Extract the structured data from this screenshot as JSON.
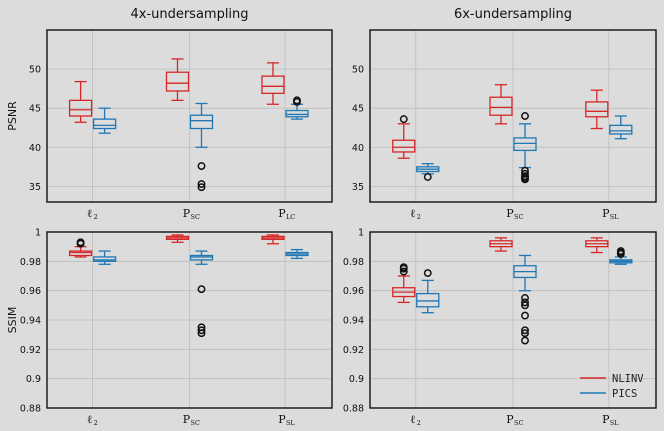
{
  "columns": [
    "4x-undersampling",
    "6x-undersampling"
  ],
  "legend": [
    {
      "name": "NLINV",
      "color": "#d62728"
    },
    {
      "name": "PICS",
      "color": "#1f77b4"
    }
  ],
  "chart_data": [
    {
      "type": "boxplot",
      "title": "4x-undersampling",
      "ylabel": "PSNR",
      "ylim": [
        33,
        55
      ],
      "yticks": [
        35,
        40,
        45,
        50
      ],
      "categories": [
        {
          "main": "ℓ",
          "sub": "2"
        },
        {
          "main": "P",
          "sub": "SC"
        },
        {
          "main": "P",
          "sub": "LC"
        }
      ],
      "series": [
        {
          "name": "NLINV",
          "boxes": [
            {
              "wlo": 43.2,
              "q1": 44.0,
              "med": 44.8,
              "q3": 46.0,
              "whi": 48.4,
              "outliers": []
            },
            {
              "wlo": 46.0,
              "q1": 47.2,
              "med": 48.2,
              "q3": 49.6,
              "whi": 51.3,
              "outliers": []
            },
            {
              "wlo": 45.5,
              "q1": 46.9,
              "med": 47.8,
              "q3": 49.1,
              "whi": 50.8,
              "outliers": []
            }
          ]
        },
        {
          "name": "PICS",
          "boxes": [
            {
              "wlo": 41.8,
              "q1": 42.4,
              "med": 42.8,
              "q3": 43.6,
              "whi": 45.0,
              "outliers": []
            },
            {
              "wlo": 40.0,
              "q1": 42.4,
              "med": 43.4,
              "q3": 44.1,
              "whi": 45.6,
              "outliers": [
                37.6,
                35.3,
                34.9
              ]
            },
            {
              "wlo": 43.6,
              "q1": 43.9,
              "med": 44.2,
              "q3": 44.7,
              "whi": 45.5,
              "outliers": [
                45.8,
                46.0
              ]
            }
          ]
        }
      ]
    },
    {
      "type": "boxplot",
      "title": "6x-undersampling",
      "ylabel": "",
      "ylim": [
        33,
        55
      ],
      "yticks": [
        35,
        40,
        45,
        50
      ],
      "categories": [
        {
          "main": "ℓ",
          "sub": "2"
        },
        {
          "main": "P",
          "sub": "SC"
        },
        {
          "main": "P",
          "sub": "SL"
        }
      ],
      "series": [
        {
          "name": "NLINV",
          "boxes": [
            {
              "wlo": 38.6,
              "q1": 39.4,
              "med": 40.0,
              "q3": 40.9,
              "whi": 43.0,
              "outliers": [
                43.6
              ]
            },
            {
              "wlo": 43.0,
              "q1": 44.1,
              "med": 45.1,
              "q3": 46.4,
              "whi": 48.0,
              "outliers": []
            },
            {
              "wlo": 42.4,
              "q1": 43.9,
              "med": 44.6,
              "q3": 45.8,
              "whi": 47.3,
              "outliers": []
            }
          ]
        },
        {
          "name": "PICS",
          "boxes": [
            {
              "wlo": 36.6,
              "q1": 36.9,
              "med": 37.2,
              "q3": 37.5,
              "whi": 37.9,
              "outliers": [
                36.2
              ]
            },
            {
              "wlo": 37.4,
              "q1": 39.6,
              "med": 40.5,
              "q3": 41.2,
              "whi": 43.0,
              "outliers": [
                44.0,
                37.0,
                36.6,
                36.3,
                36.1,
                35.9
              ]
            },
            {
              "wlo": 41.1,
              "q1": 41.7,
              "med": 42.1,
              "q3": 42.8,
              "whi": 44.0,
              "outliers": []
            }
          ]
        }
      ]
    },
    {
      "type": "boxplot",
      "title": "",
      "ylabel": "SSIM",
      "ylim": [
        0.88,
        1.0
      ],
      "yticks": [
        0.88,
        0.9,
        0.92,
        0.94,
        0.96,
        0.98,
        1.0
      ],
      "ytick_labels": [
        "0.88",
        "0.9",
        "0.92",
        "0.94",
        "0.96",
        "0.98",
        "1"
      ],
      "categories": [
        {
          "main": "ℓ",
          "sub": "2"
        },
        {
          "main": "P",
          "sub": "SC"
        },
        {
          "main": "P",
          "sub": "SL"
        }
      ],
      "series": [
        {
          "name": "NLINV",
          "boxes": [
            {
              "wlo": 0.983,
              "q1": 0.984,
              "med": 0.986,
              "q3": 0.987,
              "whi": 0.99,
              "outliers": [
                0.992,
                0.993
              ]
            },
            {
              "wlo": 0.993,
              "q1": 0.995,
              "med": 0.996,
              "q3": 0.997,
              "whi": 0.998,
              "outliers": []
            },
            {
              "wlo": 0.992,
              "q1": 0.995,
              "med": 0.996,
              "q3": 0.997,
              "whi": 0.998,
              "outliers": []
            }
          ]
        },
        {
          "name": "PICS",
          "boxes": [
            {
              "wlo": 0.978,
              "q1": 0.98,
              "med": 0.981,
              "q3": 0.983,
              "whi": 0.987,
              "outliers": []
            },
            {
              "wlo": 0.978,
              "q1": 0.981,
              "med": 0.983,
              "q3": 0.984,
              "whi": 0.987,
              "outliers": [
                0.961,
                0.935,
                0.933,
                0.931
              ]
            },
            {
              "wlo": 0.982,
              "q1": 0.984,
              "med": 0.985,
              "q3": 0.986,
              "whi": 0.988,
              "outliers": []
            }
          ]
        }
      ]
    },
    {
      "type": "boxplot",
      "title": "",
      "ylabel": "",
      "ylim": [
        0.88,
        1.0
      ],
      "yticks": [
        0.88,
        0.9,
        0.92,
        0.94,
        0.96,
        0.98,
        1.0
      ],
      "ytick_labels": [
        "0.88",
        "0.9",
        "0.92",
        "0.94",
        "0.96",
        "0.98",
        "1"
      ],
      "categories": [
        {
          "main": "ℓ",
          "sub": "2"
        },
        {
          "main": "P",
          "sub": "SC"
        },
        {
          "main": "P",
          "sub": "SL"
        }
      ],
      "series": [
        {
          "name": "NLINV",
          "boxes": [
            {
              "wlo": 0.952,
              "q1": 0.956,
              "med": 0.959,
              "q3": 0.962,
              "whi": 0.97,
              "outliers": [
                0.973,
                0.975,
                0.976
              ]
            },
            {
              "wlo": 0.987,
              "q1": 0.99,
              "med": 0.992,
              "q3": 0.994,
              "whi": 0.996,
              "outliers": []
            },
            {
              "wlo": 0.986,
              "q1": 0.99,
              "med": 0.992,
              "q3": 0.994,
              "whi": 0.996,
              "outliers": []
            }
          ]
        },
        {
          "name": "PICS",
          "boxes": [
            {
              "wlo": 0.945,
              "q1": 0.949,
              "med": 0.953,
              "q3": 0.958,
              "whi": 0.967,
              "outliers": [
                0.972
              ]
            },
            {
              "wlo": 0.96,
              "q1": 0.969,
              "med": 0.973,
              "q3": 0.977,
              "whi": 0.984,
              "outliers": [
                0.955,
                0.952,
                0.95,
                0.943,
                0.933,
                0.931,
                0.926
              ]
            },
            {
              "wlo": 0.978,
              "q1": 0.979,
              "med": 0.98,
              "q3": 0.981,
              "whi": 0.983,
              "outliers": [
                0.985,
                0.986,
                0.987
              ]
            }
          ]
        }
      ]
    }
  ]
}
